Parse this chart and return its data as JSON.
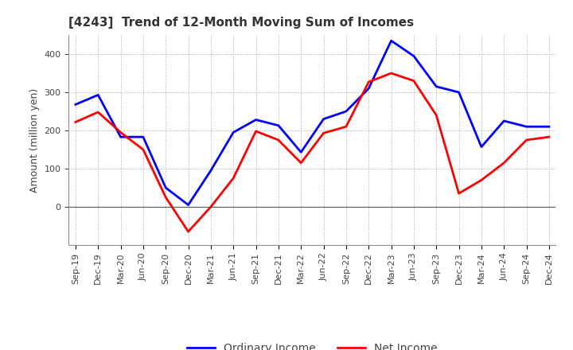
{
  "title": "[4243]  Trend of 12-Month Moving Sum of Incomes",
  "ylabel": "Amount (million yen)",
  "x_labels": [
    "Sep-19",
    "Dec-19",
    "Mar-20",
    "Jun-20",
    "Sep-20",
    "Dec-20",
    "Mar-21",
    "Jun-21",
    "Sep-21",
    "Dec-21",
    "Mar-22",
    "Jun-22",
    "Sep-22",
    "Dec-22",
    "Mar-23",
    "Jun-23",
    "Sep-23",
    "Dec-23",
    "Mar-24",
    "Jun-24",
    "Sep-24",
    "Dec-24"
  ],
  "ordinary_income": [
    268,
    293,
    183,
    183,
    50,
    5,
    95,
    195,
    228,
    213,
    143,
    230,
    250,
    310,
    435,
    395,
    315,
    300,
    157,
    225,
    210,
    210
  ],
  "net_income": [
    222,
    248,
    195,
    150,
    25,
    -65,
    0,
    75,
    198,
    175,
    115,
    193,
    210,
    327,
    350,
    330,
    240,
    35,
    70,
    115,
    175,
    183
  ],
  "ordinary_color": "#0000FF",
  "net_color": "#FF0000",
  "ylim_min": -100,
  "ylim_max": 450,
  "yticks": [
    0,
    100,
    200,
    300,
    400
  ],
  "line_width": 2.0,
  "title_fontsize": 11,
  "label_fontsize": 9,
  "tick_fontsize": 8,
  "legend_labels": [
    "Ordinary Income",
    "Net Income"
  ],
  "background_color": "#ffffff",
  "grid_color": "#aaaaaa",
  "zero_line_color": "#555555"
}
